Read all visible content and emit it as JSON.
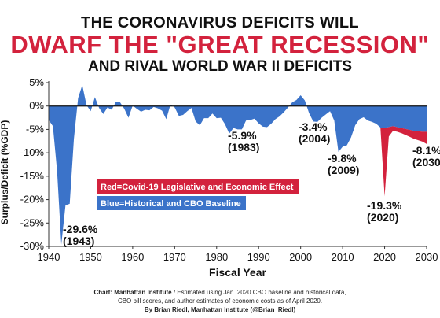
{
  "header": {
    "line1": "THE CORONAVIRUS DEFICITS WILL",
    "line2": "DWARF THE \"GREAT RECESSION\"",
    "line3": "AND RIVAL WORLD WAR II DEFICITS"
  },
  "colors": {
    "historical": "#3b73c9",
    "covid": "#d3223d",
    "zero_line": "#111111"
  },
  "chart_data": {
    "type": "area",
    "xlabel": "Fiscal Year",
    "ylabel": "Surplus/Deficit (%GDP)",
    "xlim": [
      1940,
      2030
    ],
    "ylim": [
      -30,
      5
    ],
    "x_ticks": [
      "1940",
      "1950",
      "1960",
      "1970",
      "1980",
      "1990",
      "2000",
      "2010",
      "2020",
      "2030"
    ],
    "y_ticks": [
      "5%",
      "0%",
      "-5%",
      "-10%",
      "-15%",
      "-20%",
      "-25%",
      "-30%"
    ],
    "grid": false,
    "legend": [
      {
        "name": "Red=Covid-19 Legislative and Economic Effect",
        "color": "#d3223d"
      },
      {
        "name": "Blue=Historical and CBO Baseline",
        "color": "#3b73c9"
      }
    ],
    "series": [
      {
        "name": "Blue=Historical and CBO Baseline",
        "x": [
          1940,
          1941,
          1942,
          1943,
          1944,
          1945,
          1946,
          1947,
          1948,
          1949,
          1950,
          1951,
          1952,
          1953,
          1954,
          1955,
          1956,
          1957,
          1958,
          1959,
          1960,
          1961,
          1962,
          1963,
          1964,
          1965,
          1966,
          1967,
          1968,
          1969,
          1970,
          1971,
          1972,
          1973,
          1974,
          1975,
          1976,
          1977,
          1978,
          1979,
          1980,
          1981,
          1982,
          1983,
          1984,
          1985,
          1986,
          1987,
          1988,
          1989,
          1990,
          1991,
          1992,
          1993,
          1994,
          1995,
          1996,
          1997,
          1998,
          1999,
          2000,
          2001,
          2002,
          2003,
          2004,
          2005,
          2006,
          2007,
          2008,
          2009,
          2010,
          2011,
          2012,
          2013,
          2014,
          2015,
          2016,
          2017,
          2018,
          2019,
          2020,
          2021,
          2022,
          2023,
          2024,
          2025,
          2026,
          2027,
          2028,
          2029,
          2030
        ],
        "values": [
          -3.0,
          -4.3,
          -13.9,
          -29.6,
          -21.2,
          -20.9,
          -7.0,
          1.7,
          4.5,
          0.2,
          -1.1,
          1.9,
          -0.4,
          -1.7,
          -0.3,
          -0.8,
          0.9,
          0.8,
          -0.6,
          -2.5,
          0.1,
          -0.6,
          -1.2,
          -0.8,
          -0.9,
          -0.2,
          -0.5,
          -1.0,
          -2.8,
          0.3,
          -0.3,
          -2.1,
          -1.9,
          -1.1,
          -0.4,
          -3.3,
          -4.1,
          -2.6,
          -2.6,
          -1.6,
          -2.6,
          -2.5,
          -3.9,
          -5.9,
          -4.7,
          -5.0,
          -5.0,
          -3.1,
          -3.0,
          -2.7,
          -3.7,
          -4.4,
          -4.5,
          -3.8,
          -2.8,
          -2.2,
          -1.3,
          -0.3,
          0.8,
          1.3,
          2.3,
          1.2,
          -1.5,
          -3.3,
          -3.4,
          -2.5,
          -1.8,
          -1.1,
          -3.1,
          -9.8,
          -8.7,
          -8.4,
          -6.7,
          -4.1,
          -2.8,
          -2.4,
          -3.1,
          -3.4,
          -3.8,
          -4.6,
          -4.7,
          -4.5,
          -4.3,
          -4.5,
          -4.7,
          -4.9,
          -5.1,
          -5.3,
          -5.4,
          -5.5,
          -5.5
        ]
      },
      {
        "name": "Red=Covid-19 Legislative and Economic Effect",
        "x": [
          2019,
          2020,
          2021,
          2022,
          2023,
          2024,
          2025,
          2026,
          2027,
          2028,
          2029,
          2030
        ],
        "values": [
          -4.6,
          -19.3,
          -6.5,
          -5.3,
          -5.5,
          -5.8,
          -6.2,
          -6.6,
          -7.0,
          -7.3,
          -7.6,
          -8.1
        ]
      }
    ],
    "annotations": [
      {
        "value": "-29.6%",
        "year": "(1943)"
      },
      {
        "value": "-5.9%",
        "year": "(1983)"
      },
      {
        "value": "-3.4%",
        "year": "(2004)"
      },
      {
        "value": "-9.8%",
        "year": "(2009)"
      },
      {
        "value": "-19.3%",
        "year": "(2020)"
      },
      {
        "value": "-8.1%",
        "year": "(2030)"
      }
    ]
  },
  "footer": {
    "source_label": "Chart: Manhattan Institute",
    "source_text": " / Estimated using Jan. 2020 CBO baseline and historical data,",
    "line2": "CBO bill scores, and author estimates of economic costs as of April 2020.",
    "byline": "By Brian Riedl, Manhattan Institute (@Brian_Riedl)"
  }
}
